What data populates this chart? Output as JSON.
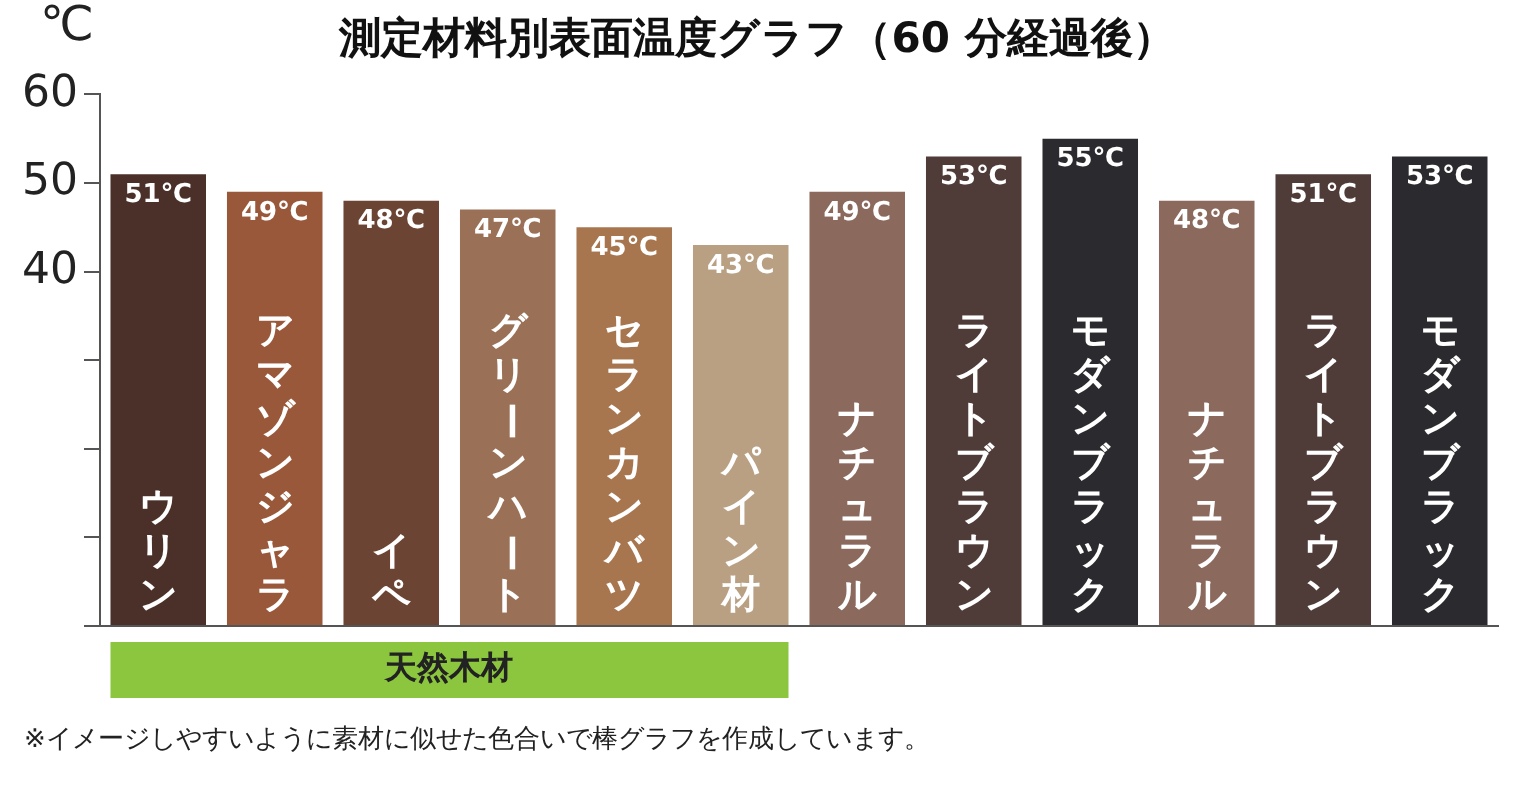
{
  "chart_data": {
    "type": "bar",
    "title": "測定材料別表面温度グラフ（60 分経過後）",
    "ylabel": "℃",
    "categories": [
      "ウリン",
      "アマゾンジャラ",
      "イペ",
      "グリーンハート",
      "セランカンバツ",
      "パイン材",
      "ナチュラル",
      "ライトブラウン",
      "モダンブラック",
      "ナチュラル",
      "ライトブラウン",
      "モダンブラック"
    ],
    "values": [
      51,
      49,
      48,
      47,
      45,
      43,
      49,
      53,
      55,
      48,
      51,
      53
    ],
    "value_labels": [
      "51℃",
      "49℃",
      "48℃",
      "47℃",
      "45℃",
      "43℃",
      "49℃",
      "53℃",
      "55℃",
      "48℃",
      "51℃",
      "53℃"
    ],
    "colors": [
      "#4b3029",
      "#9a583a",
      "#6c4433",
      "#9a7157",
      "#a7764f",
      "#b9a083",
      "#8b695d",
      "#4f3b37",
      "#2b2a2e",
      "#8b695d",
      "#4f3b37",
      "#2b2a2e"
    ],
    "ylim": [
      0,
      60
    ],
    "yticks": [
      {
        "value": 0,
        "label": null
      },
      {
        "value": 10,
        "label": null
      },
      {
        "value": 20,
        "label": null
      },
      {
        "value": 30,
        "label": null
      },
      40,
      50,
      60
    ],
    "grid": false,
    "legend": false,
    "annotations": [
      "天然木材",
      "※イメージしやすいように素材に似せた色合いで棒グラフを作成しています。"
    ]
  }
}
